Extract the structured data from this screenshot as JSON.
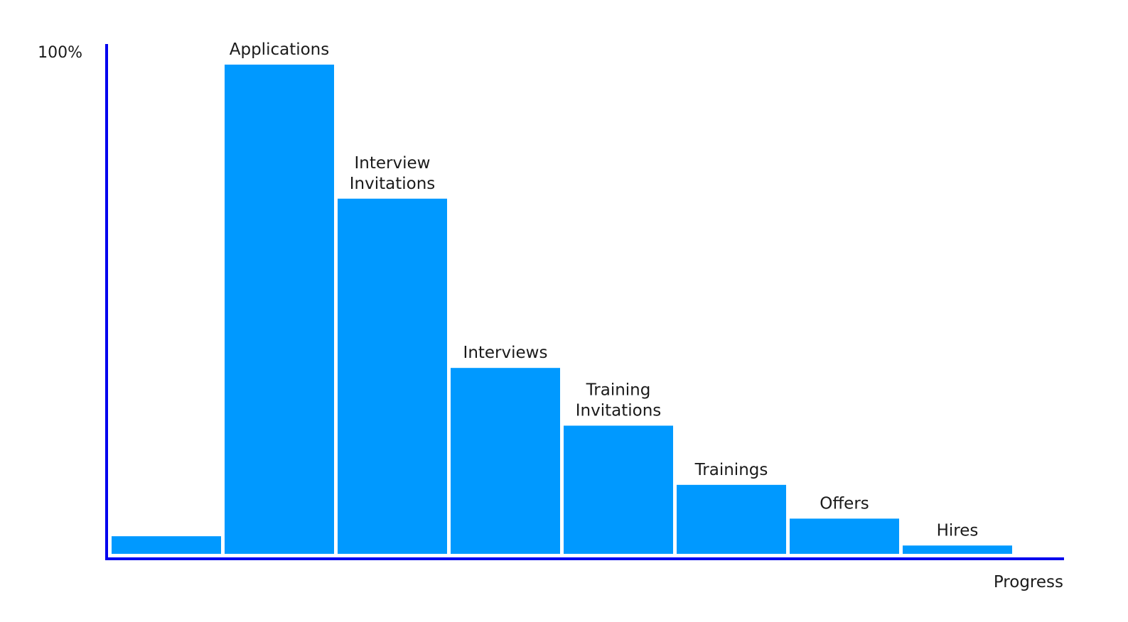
{
  "chart_data": {
    "type": "bar",
    "ylabel_top": "100%",
    "xlabel": "Progress",
    "ylim": [
      0,
      100
    ],
    "categories": [
      "",
      "Applications",
      "Interview\nInvitations",
      "Interviews",
      "Training\nInvitations",
      "Trainings",
      "Offers",
      "Hires"
    ],
    "values": [
      3.6,
      100,
      72.6,
      38.0,
      26.2,
      14.1,
      7.2,
      1.7
    ],
    "colors": {
      "bar": "#0099ff",
      "axis": "#0000ee",
      "text": "#1a1a1a"
    }
  }
}
